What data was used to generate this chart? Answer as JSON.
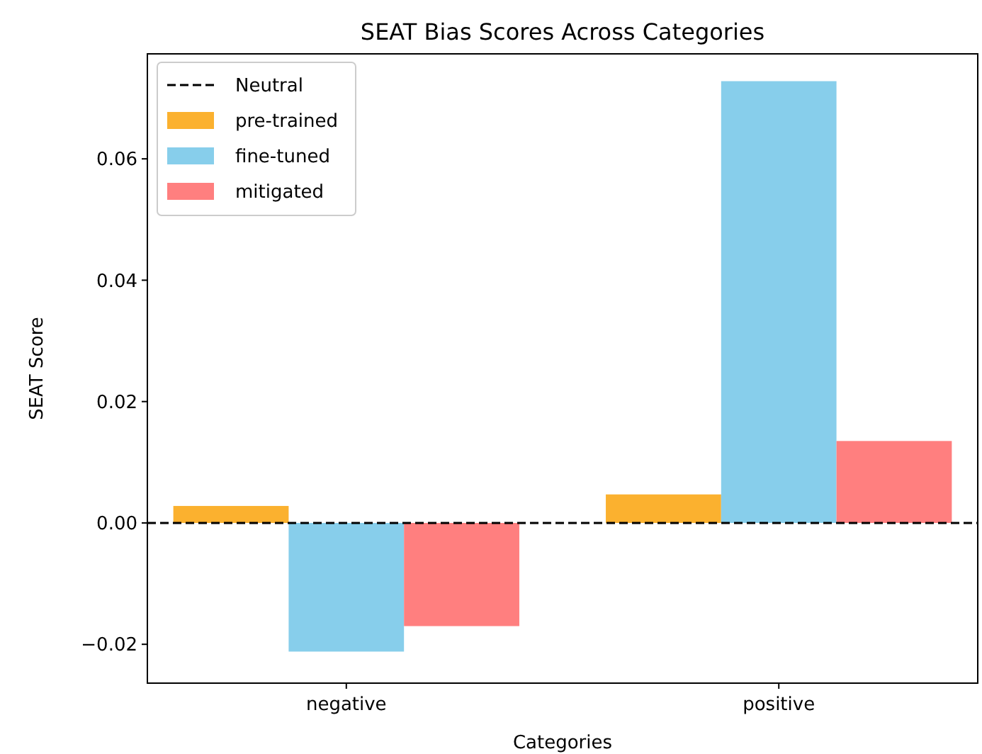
{
  "chart_data": {
    "type": "bar",
    "title": "SEAT Bias Scores Across Categories",
    "xlabel": "Categories",
    "ylabel": "SEAT Score",
    "categories": [
      "negative",
      "positive"
    ],
    "series": [
      {
        "name": "pre-trained",
        "color": "#fbb12f",
        "values": [
          0.0028,
          0.0047
        ]
      },
      {
        "name": "fine-tuned",
        "color": "#87ceeb",
        "values": [
          -0.0212,
          0.0728
        ]
      },
      {
        "name": "mitigated",
        "color": "#ff7f7f",
        "values": [
          -0.017,
          0.0135
        ]
      }
    ],
    "ylim": [
      -0.0264,
      0.0773
    ],
    "yticks": [
      {
        "value": -0.02,
        "label": "−0.02"
      },
      {
        "value": 0,
        "label": "0.00"
      },
      {
        "value": 0.02,
        "label": "0.02"
      },
      {
        "value": 0.04,
        "label": "0.04"
      },
      {
        "value": 0.06,
        "label": "0.06"
      }
    ],
    "ref_lines": [
      {
        "axis": "y",
        "value": 0,
        "label": "Neutral",
        "color": "#000000",
        "line_style": "dashed"
      }
    ],
    "legend": "top left",
    "grid": false
  }
}
